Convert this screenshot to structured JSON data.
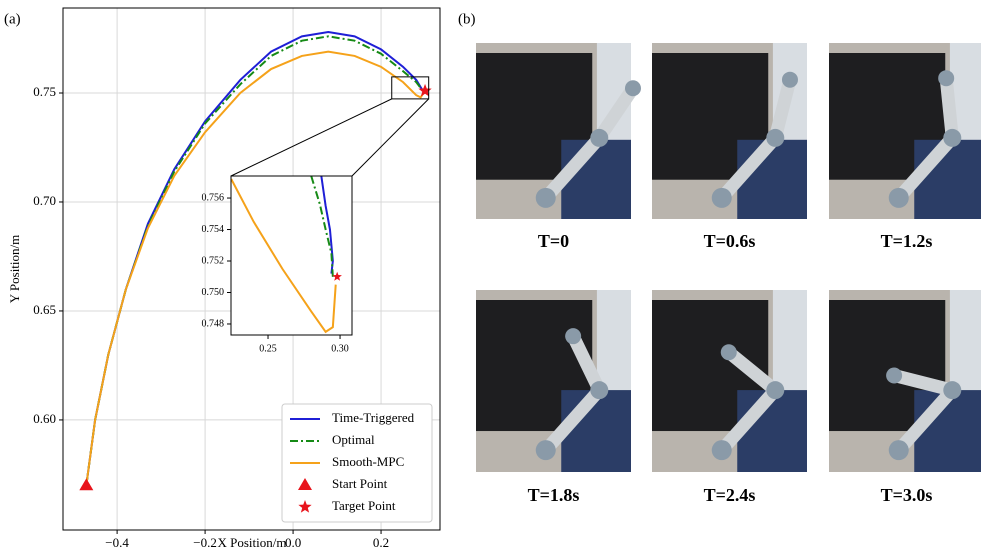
{
  "chart_data": [
    {
      "type": "line",
      "panel_label": "(a)",
      "xlabel": "X Position/m",
      "ylabel": "Y Position/m",
      "xlim": [
        -0.523,
        0.334
      ],
      "ylim": [
        0.5495,
        0.789
      ],
      "xticks": [
        {
          "value": -0.4,
          "label": "−0.4"
        },
        {
          "value": -0.2,
          "label": "−0.2"
        },
        {
          "value": 0,
          "label": "0.0"
        },
        0.2
      ],
      "yticks": [
        {
          "value": 0.6,
          "label": "0.60"
        },
        0.65,
        {
          "value": 0.7,
          "label": "0.70"
        },
        0.75
      ],
      "grid": true,
      "legend": "lower right",
      "series": [
        {
          "name": "Time-Triggered",
          "color": "#1f1fd6",
          "dash": "solid",
          "x": [
            -0.47,
            -0.45,
            -0.42,
            -0.38,
            -0.33,
            -0.27,
            -0.2,
            -0.12,
            -0.05,
            0.02,
            0.08,
            0.14,
            0.2,
            0.25,
            0.28,
            0.295
          ],
          "values": [
            0.57,
            0.6,
            0.63,
            0.66,
            0.69,
            0.715,
            0.737,
            0.756,
            0.769,
            0.776,
            0.778,
            0.776,
            0.77,
            0.762,
            0.756,
            0.751
          ]
        },
        {
          "name": "Optimal",
          "color": "#168a16",
          "dash": "dashdot",
          "x": [
            -0.47,
            -0.45,
            -0.42,
            -0.38,
            -0.33,
            -0.27,
            -0.2,
            -0.12,
            -0.05,
            0.02,
            0.08,
            0.14,
            0.2,
            0.25,
            0.28,
            0.295
          ],
          "values": [
            0.57,
            0.6,
            0.63,
            0.66,
            0.689,
            0.714,
            0.736,
            0.754,
            0.767,
            0.774,
            0.776,
            0.774,
            0.768,
            0.76,
            0.755,
            0.751
          ]
        },
        {
          "name": "Smooth-MPC",
          "color": "#f5a21a",
          "dash": "solid",
          "x": [
            -0.47,
            -0.45,
            -0.42,
            -0.38,
            -0.33,
            -0.27,
            -0.2,
            -0.12,
            -0.05,
            0.02,
            0.08,
            0.14,
            0.2,
            0.25,
            0.28,
            0.29,
            0.3
          ],
          "values": [
            0.57,
            0.6,
            0.63,
            0.66,
            0.688,
            0.712,
            0.732,
            0.75,
            0.761,
            0.767,
            0.769,
            0.767,
            0.762,
            0.755,
            0.749,
            0.748,
            0.751
          ]
        }
      ],
      "markers": [
        {
          "name": "Start Point",
          "shape": "triangle",
          "color": "#e8141c",
          "x": -0.47,
          "y": 0.57
        },
        {
          "name": "Target Point",
          "shape": "star",
          "color": "#e8141c",
          "x": 0.3,
          "y": 0.751
        }
      ]
    },
    {
      "type": "line",
      "inset": true,
      "xlim": [
        0.2243,
        0.3083
      ],
      "ylim": [
        0.7473,
        0.7574
      ],
      "xticks": [
        0.25,
        {
          "value": 0.3,
          "label": "0.30"
        }
      ],
      "yticks": [
        0.748,
        {
          "value": 0.75,
          "label": "0.750"
        },
        0.752,
        0.754,
        0.756
      ],
      "grid": false,
      "series": [
        {
          "name": "Time-Triggered",
          "color": "#1f1fd6",
          "dash": "solid",
          "x": [
            0.287,
            0.29,
            0.293,
            0.295,
            0.294
          ],
          "values": [
            0.7574,
            0.7555,
            0.754,
            0.752,
            0.7512
          ]
        },
        {
          "name": "Optimal",
          "color": "#168a16",
          "dash": "dashdot",
          "x": [
            0.28,
            0.286,
            0.29,
            0.294,
            0.295
          ],
          "values": [
            0.7574,
            0.7556,
            0.754,
            0.7525,
            0.751
          ]
        },
        {
          "name": "Smooth-MPC",
          "color": "#f5a21a",
          "dash": "solid",
          "x": [
            0.2245,
            0.24,
            0.26,
            0.28,
            0.29,
            0.295,
            0.297
          ],
          "values": [
            0.7572,
            0.7545,
            0.7515,
            0.7488,
            0.7475,
            0.7478,
            0.7505
          ]
        }
      ],
      "markers": [
        {
          "name": "Target Point",
          "shape": "star",
          "color": "#e8141c",
          "x": 0.298,
          "y": 0.751
        }
      ]
    }
  ],
  "panel_b": {
    "label": "(b)",
    "photos": [
      {
        "caption": "T=0"
      },
      {
        "caption": "T=0.6s"
      },
      {
        "caption": "T=1.2s"
      },
      {
        "caption": "T=1.8s"
      },
      {
        "caption": "T=2.4s"
      },
      {
        "caption": "T=3.0s"
      }
    ]
  }
}
